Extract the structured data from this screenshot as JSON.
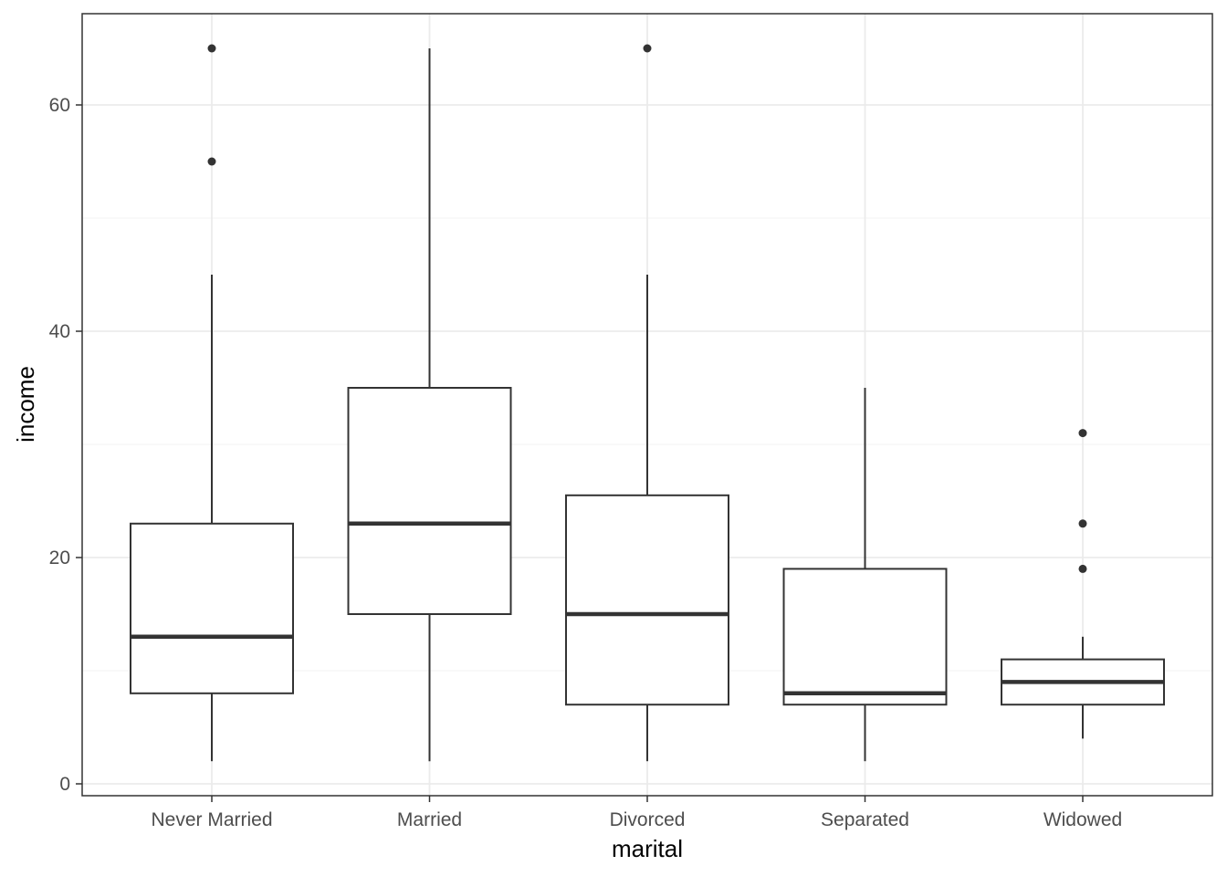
{
  "chart_data": {
    "type": "boxplot",
    "title": "",
    "xlabel": "marital",
    "ylabel": "income",
    "ylim": [
      -1.1,
      68.1
    ],
    "yticks": [
      0,
      20,
      40,
      60
    ],
    "ytick_labels": [
      "0",
      "20",
      "40",
      "60"
    ],
    "minor_yticks": [
      10,
      30,
      50
    ],
    "grid": true,
    "categories": [
      "Never Married",
      "Married",
      "Divorced",
      "Separated",
      "Widowed"
    ],
    "boxes": [
      {
        "category": "Never Married",
        "whisker_low": 2,
        "q1": 8,
        "median": 13,
        "q3": 23,
        "whisker_high": 45,
        "outliers": [
          55,
          65
        ]
      },
      {
        "category": "Married",
        "whisker_low": 2,
        "q1": 15,
        "median": 23,
        "q3": 35,
        "whisker_high": 65,
        "outliers": []
      },
      {
        "category": "Divorced",
        "whisker_low": 2,
        "q1": 7,
        "median": 15,
        "q3": 25.5,
        "whisker_high": 45,
        "outliers": [
          65
        ]
      },
      {
        "category": "Separated",
        "whisker_low": 2,
        "q1": 7,
        "median": 8,
        "q3": 19,
        "whisker_high": 35,
        "outliers": []
      },
      {
        "category": "Widowed",
        "whisker_low": 4,
        "q1": 7,
        "median": 9,
        "q3": 11,
        "whisker_high": 13,
        "outliers": [
          19,
          23,
          31
        ]
      }
    ],
    "colors": {
      "panel_border": "#333333",
      "grid_major": "#ebebeb",
      "grid_minor": "#f5f5f5",
      "box_line": "#333333",
      "box_fill": "#ffffff",
      "tick_label": "#4d4d4d"
    }
  }
}
